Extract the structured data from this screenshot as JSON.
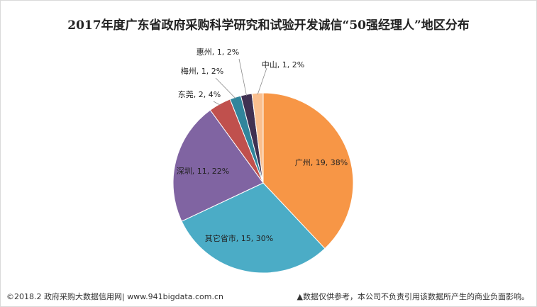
{
  "chart_data": {
    "type": "pie",
    "title": "2017年度广东省政府采购科学研究和试验开发诚信“50强经理人”地区分布",
    "slices": [
      {
        "name": "广州",
        "value": 19,
        "percent": "38%",
        "color": "#f79646",
        "label": "广州, 19, 38%"
      },
      {
        "name": "其它省市",
        "value": 15,
        "percent": "30%",
        "color": "#4bacc6",
        "label": "其它省市, 15, 30%"
      },
      {
        "name": "深圳",
        "value": 11,
        "percent": "22%",
        "color": "#8064a2",
        "label": "深圳, 11, 22%"
      },
      {
        "name": "东莞",
        "value": 2,
        "percent": "4%",
        "color": "#c0504d",
        "label": "东莞, 2, 4%"
      },
      {
        "name": "梅州",
        "value": 1,
        "percent": "2%",
        "color": "#31859c",
        "label": "梅州, 1, 2%"
      },
      {
        "name": "惠州",
        "value": 1,
        "percent": "2%",
        "color": "#403152",
        "label": "惠州, 1, 2%"
      },
      {
        "name": "中山",
        "value": 1,
        "percent": "2%",
        "color": "#fabf8f",
        "label": "中山, 1, 2%"
      }
    ]
  },
  "footer": {
    "source": "©2018.2 政府采购大数据信用网| www.941bigdata.com.cn",
    "disclaimer": "▲数据仅供参考，本公司不负责引用该数据所产生的商业负面影响。"
  }
}
